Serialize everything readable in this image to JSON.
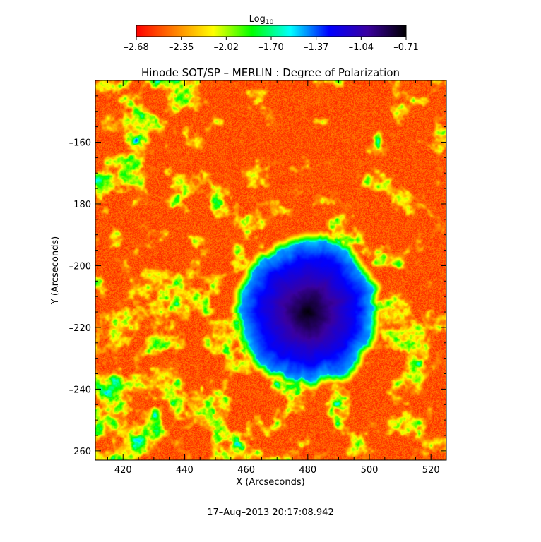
{
  "colorbar": {
    "label_main": "Log",
    "label_sub": "10",
    "tick_labels": [
      "-2.68",
      "-2.35",
      "-2.02",
      "-1.70",
      "-1.37",
      "-1.04",
      "-0.71"
    ],
    "range": [
      -2.68,
      -0.71
    ],
    "colormap": [
      "#ff0000",
      "#ff8000",
      "#ffff00",
      "#00ff00",
      "#00ffff",
      "#0000ff",
      "#3a00a0",
      "#000000"
    ]
  },
  "chart_data": {
    "type": "heatmap",
    "title": "Hinode SOT/SP – MERLIN : Degree of Polarization",
    "xlabel": "X (Arcseconds)",
    "ylabel": "Y (Arcseconds)",
    "xlim": [
      411,
      525
    ],
    "ylim": [
      -263,
      -140
    ],
    "x_ticks": [
      420,
      440,
      460,
      480,
      500,
      520
    ],
    "y_ticks": [
      -160,
      -180,
      -200,
      -220,
      -240,
      -260
    ],
    "value_range": [
      -2.68,
      -0.71
    ],
    "features": [
      {
        "name": "sunspot umbra",
        "x": 480,
        "y": -215,
        "value": -0.71
      },
      {
        "name": "penumbra",
        "x": 483,
        "y": -213,
        "value": -1.2
      }
    ]
  },
  "timestamp": "17–Aug–2013 20:17:08.942"
}
